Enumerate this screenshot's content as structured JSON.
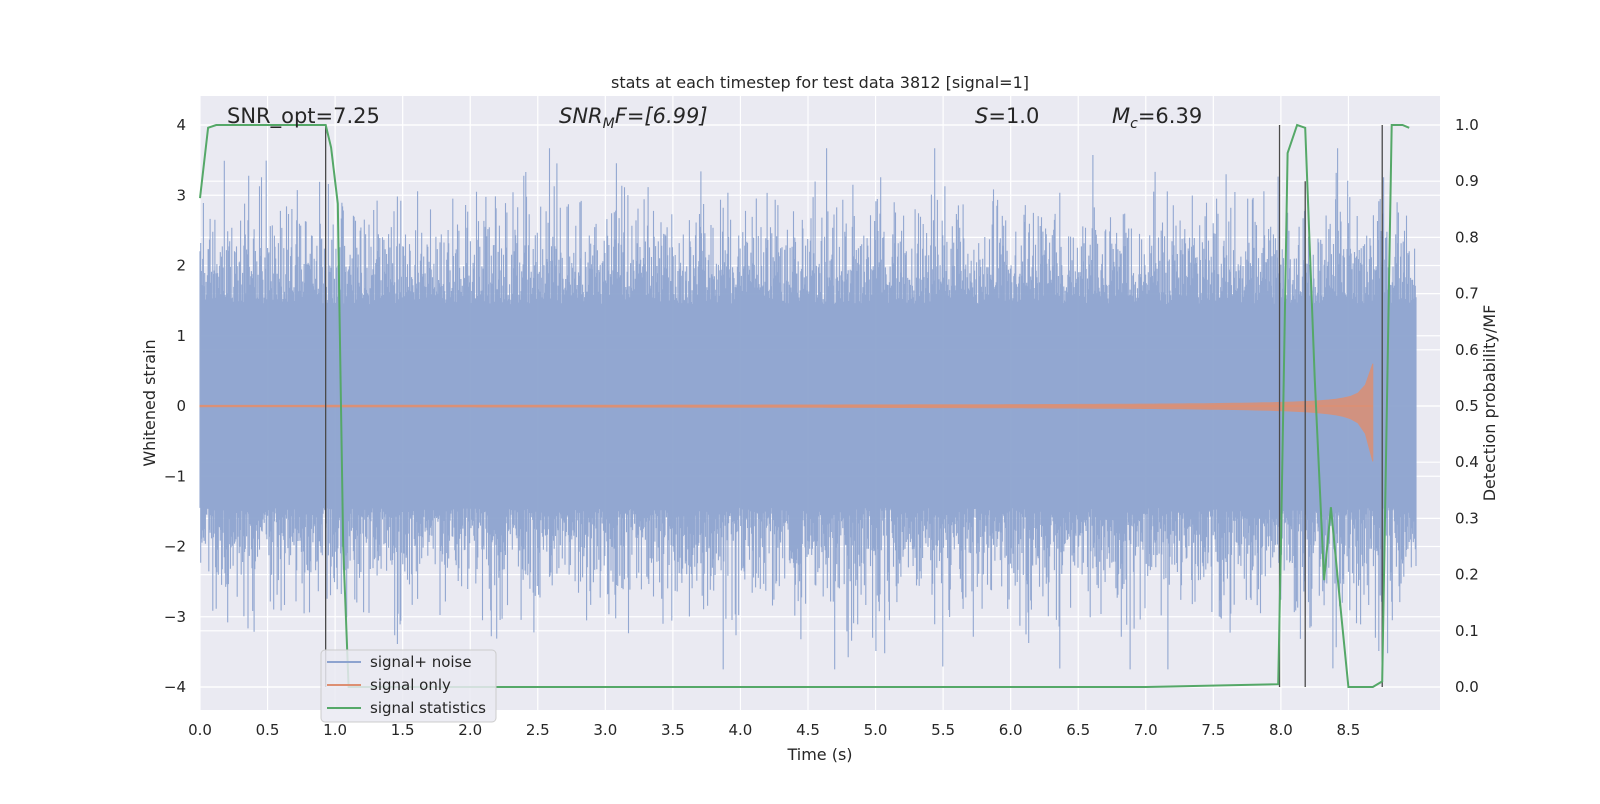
{
  "chart_data": {
    "type": "line",
    "title": "stats at each timestep for test data 3812 [signal=1]",
    "xlabel": "Time (s)",
    "ylabel_left": "Whitened strain",
    "ylabel_right": "Detection probability/MF",
    "xlim": [
      0.0,
      9.0
    ],
    "ylim_left": [
      -4.3,
      4.4
    ],
    "ylim_right": [
      -0.05,
      1.05
    ],
    "x_ticks": [
      0.0,
      0.5,
      1.0,
      1.5,
      2.0,
      2.5,
      3.0,
      3.5,
      4.0,
      4.5,
      5.0,
      5.5,
      6.0,
      6.5,
      7.0,
      7.5,
      8.0,
      8.5
    ],
    "x_tick_labels": [
      "0.0",
      "0.5",
      "1.0",
      "1.5",
      "2.0",
      "2.5",
      "3.0",
      "3.5",
      "4.0",
      "4.5",
      "5.0",
      "5.5",
      "6.0",
      "6.5",
      "7.0",
      "7.5",
      "8.0",
      "8.5"
    ],
    "y_left_ticks": [
      4,
      3,
      2,
      1,
      0,
      -1,
      -2,
      -3,
      -4
    ],
    "y_left_tick_labels": [
      "4",
      "3",
      "2",
      "1",
      "0",
      "−1",
      "−2",
      "−3",
      "−4"
    ],
    "y_right_ticks": [
      1.0,
      0.9,
      0.8,
      0.7,
      0.6,
      0.5,
      0.4,
      0.3,
      0.2,
      0.1,
      0.0
    ],
    "y_right_tick_labels": [
      "1.0",
      "0.9",
      "0.8",
      "0.7",
      "0.6",
      "0.5",
      "0.4",
      "0.3",
      "0.2",
      "0.1",
      "0.0"
    ],
    "grid": true,
    "legend_position": "lower-left",
    "annotations": {
      "snr_opt": "SNR_opt=7.25",
      "snr_mf_base": "SNR",
      "snr_mf_sub": "M",
      "snr_mf_rest": "F=[6.99]",
      "s_base": "S",
      "s_rest": "=1.0",
      "mc_base": "M",
      "mc_sub": "c",
      "mc_rest": "=6.39"
    },
    "series": [
      {
        "name": "signal+ noise",
        "color": "#8da3cf",
        "axis": "left",
        "description_values": {
          "t_start": 0.0,
          "t_end": 9.0,
          "typical_range": [
            -2.4,
            2.4
          ],
          "max": 3.67,
          "min": -3.75
        }
      },
      {
        "name": "signal only",
        "color": "#dd8f72",
        "axis": "left",
        "chirp": {
          "t_start": 0.0,
          "t_merger": 8.68,
          "peak_amplitude": 0.8,
          "min_amplitude": -1.05
        }
      },
      {
        "name": "signal statistics",
        "color": "#55a868",
        "axis": "right",
        "x": [
          0.0,
          0.06,
          0.12,
          0.2,
          0.4,
          0.6,
          0.8,
          0.93,
          0.97,
          1.02,
          1.06,
          1.1,
          1.5,
          2.0,
          3.0,
          4.0,
          5.0,
          6.0,
          7.0,
          7.98,
          8.0,
          8.05,
          8.12,
          8.18,
          8.25,
          8.32,
          8.37,
          8.45,
          8.5,
          8.6,
          8.68,
          8.75,
          8.82,
          8.9,
          8.95
        ],
        "y": [
          0.87,
          0.995,
          1.0,
          1.0,
          1.0,
          1.0,
          1.0,
          1.0,
          0.96,
          0.86,
          0.25,
          0.0,
          0.0,
          0.0,
          0.0,
          0.0,
          0.0,
          0.0,
          0.0,
          0.005,
          0.25,
          0.95,
          1.0,
          0.995,
          0.55,
          0.19,
          0.32,
          0.12,
          0.0,
          0.0,
          0.0,
          0.01,
          1.0,
          1.0,
          0.995
        ]
      },
      {
        "name": "detection markers",
        "color": "#4a4a4a",
        "axis": "right",
        "x": [
          0.93,
          7.99,
          8.18,
          8.75
        ],
        "y_from": [
          0.0,
          0.0,
          0.0,
          0.0
        ],
        "y_to": [
          1.0,
          1.0,
          0.9,
          1.0
        ]
      }
    ]
  },
  "legend": {
    "items": [
      {
        "label": "signal+ noise",
        "color": "#8da3cf"
      },
      {
        "label": "signal only",
        "color": "#dd8f72"
      },
      {
        "label": "signal statistics",
        "color": "#55a868"
      }
    ]
  }
}
